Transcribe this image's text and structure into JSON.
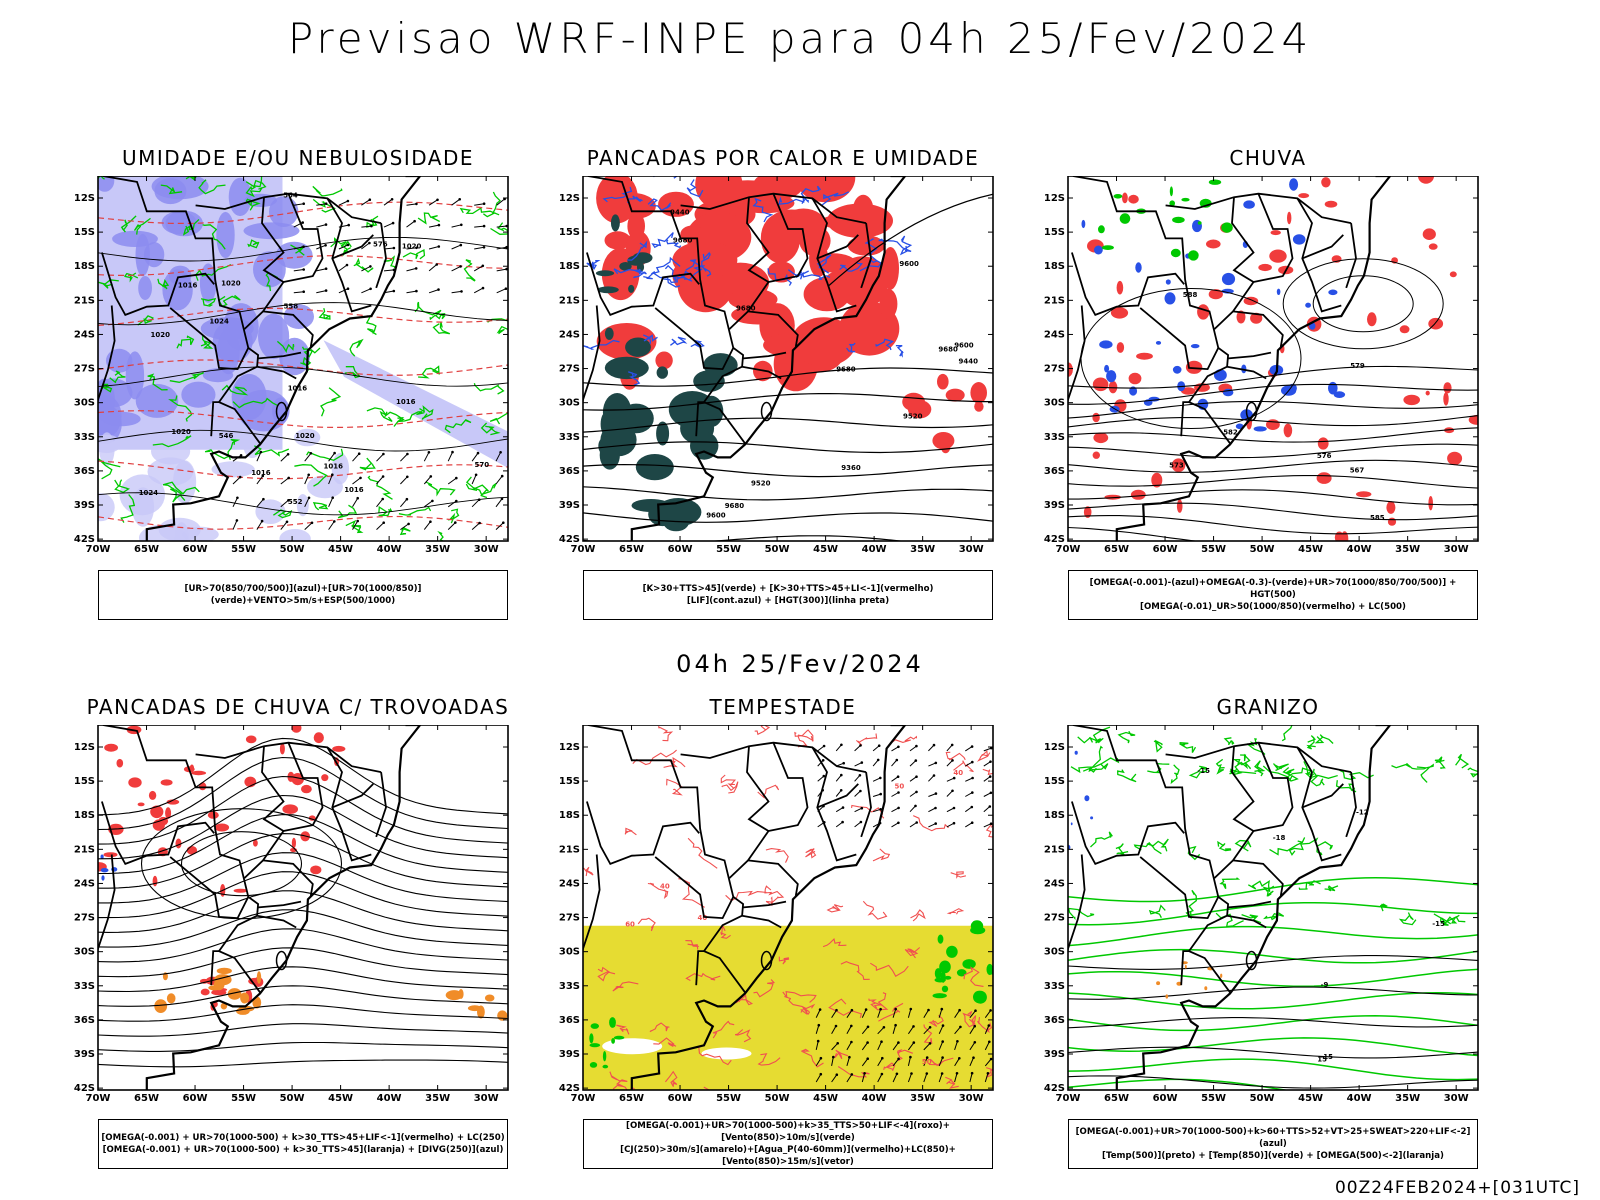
{
  "header": {
    "title": "Previsao WRF-INPE  para 04h 25/Fev/2024",
    "mid_title": "04h 25/Fev/2024",
    "stamp": "00Z24FEB2024+[031UTC]"
  },
  "axes": {
    "lat_labels": [
      "12S",
      "15S",
      "18S",
      "21S",
      "24S",
      "27S",
      "30S",
      "33S",
      "36S",
      "39S",
      "42S"
    ],
    "lon_labels": [
      "70W",
      "65W",
      "60W",
      "55W",
      "50W",
      "45W",
      "40W",
      "35W",
      "30W"
    ]
  },
  "colors": {
    "humidity_blue": "#8c8cf0",
    "humidity_light": "#c8c8f8",
    "green_contour": "#00c800",
    "red_area": "#f03c3c",
    "dark_teal": "#1e4646",
    "blue_area": "#2850e6",
    "orange_area": "#f08c28",
    "yellow_area": "#e6dc32",
    "red_contour": "#f05050"
  },
  "panels": [
    {
      "title": "UMIDADE E/OU NEBULOSIDADE",
      "legend": [
        "[UR>70(850/700/500)](azul)+[UR>70(1000/850)](verde)+VENTO>5m/s+ESP(500/1000)"
      ],
      "contour_labels": [
        "1016",
        "1016",
        "1016",
        "1020",
        "1024",
        "1020",
        "1016",
        "1020",
        "1020",
        "1016",
        "1024",
        "576",
        "570",
        "564",
        "558",
        "552",
        "546",
        "1016",
        "1020"
      ]
    },
    {
      "title": "PANCADAS POR CALOR E UMIDADE",
      "legend": [
        "[K>30+TTS>45](verde) + [K>30+TTS>45+LI<-1](vermelho)",
        "[LIF](cont.azul) + [HGT(300)](linha preta)"
      ],
      "contour_labels": [
        "9680",
        "9680",
        "9600",
        "9680",
        "9680",
        "9600",
        "9520",
        "9440",
        "9360",
        "9680",
        "9600",
        "9520",
        "9440"
      ]
    },
    {
      "title": "CHUVA",
      "legend": [
        "[OMEGA(-0.001)-(azul)+OMEGA(-0.3)-(verde)+UR>70(1000/850/700/500)] + HGT(500)",
        "[OMEGA(-0.01)_UR>50(1000/850)(vermelho) + LC(500)"
      ],
      "contour_labels": [
        "588",
        "585",
        "582",
        "579",
        "576",
        "573",
        "567"
      ]
    },
    {
      "title": "PANCADAS DE CHUVA C/ TROVOADAS",
      "legend": [
        "[OMEGA(-0.001) + UR>70(1000-500) + k>30_TTS>45+LIF<-1](vermelho) + LC(250)",
        "[OMEGA(-0.001) + UR>70(1000-500) + k>30_TTS>45](laranja) + [DIVG(250)](azul)"
      ],
      "contour_labels": []
    },
    {
      "title": "TEMPESTADE",
      "legend": [
        "[OMEGA(-0.001)+UR>70(1000-500)+k>35_TTS>50+LIF<-4](roxo)+[Vento(850)>10m/s](verde)",
        "[CJ(250)>30m/s](amarelo)+[Agua_P(40-60mm)](vermelho)+LC(850)+[Vento(850)>15m/s](vetor)"
      ],
      "contour_labels": [
        "40",
        "40",
        "50",
        "60",
        "50",
        "40"
      ]
    },
    {
      "title": "GRANIZO",
      "legend": [
        "[OMEGA(-0.001)+UR>70(1000-500)+k>60+TTS>52+VT>25+SWEAT>220+LIF<-2](azul)",
        "[Temp(500)](preto) + [Temp(850)](verde) + [OMEGA(500)<-2](laranja)"
      ],
      "contour_labels": [
        "-9",
        "-12",
        "-15",
        "-15",
        "-18",
        "-15",
        "15"
      ]
    }
  ]
}
